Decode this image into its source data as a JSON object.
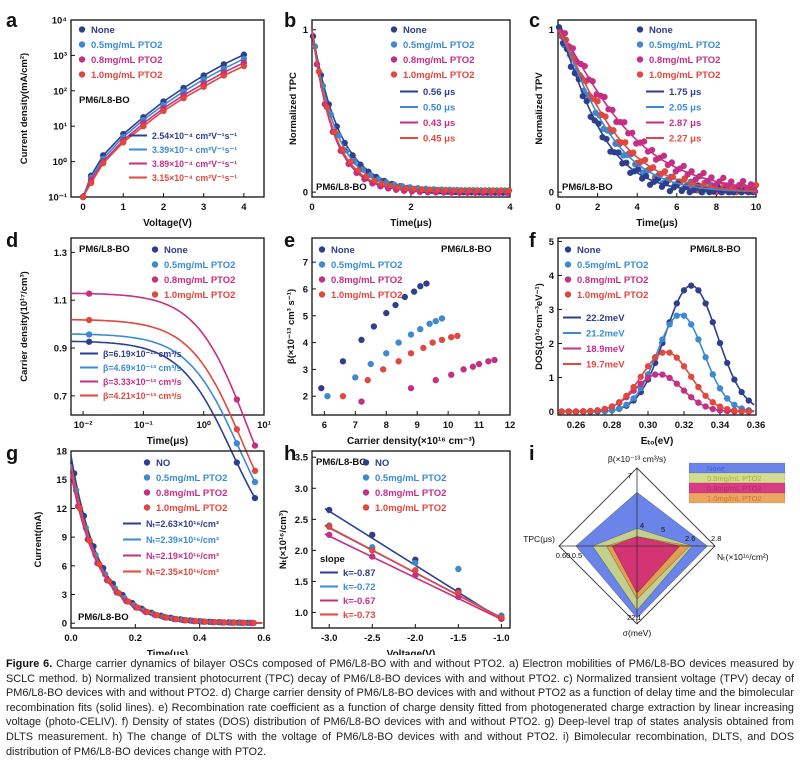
{
  "colors": {
    "none": "#2e3f8f",
    "c05": "#3b8bd4",
    "c08": "#c92e86",
    "c10": "#e5463e",
    "axis": "#111111"
  },
  "caption": {
    "label": "Figure 6.",
    "text": "Charge carrier dynamics of bilayer OSCs composed of PM6/L8-BO with and without PTO2. a) Electron mobilities of PM6/L8-BO devices measured by SCLC method. b) Normalized transient photocurrent (TPC) decay of PM6/L8-BO devices with and without PTO2. c) Normalized transient voltage (TPV) decay of PM6/L8-BO devices with and without PTO2. d) Charge carrier density of PM6/L8-BO devices with and without PTO2 as a function of delay time and the bimolecular recombination fits (solid lines). e) Recombination rate coefficient as a function of charge density fitted from photogenerated charge extraction by linear increasing voltage (photo-CELIV). f) Density of states (DOS) distribution of PM6/L8-BO devices with and without PTO2. g) Deep-level trap of states analysis obtained from DLTS measurement. h) The change of DLTS with the voltage of PM6/L8-BO devices with and without PTO2. i) Bimolecular recombination, DLTS, and DOS distribution of PM6/L8-BO devices change with PTO2."
  },
  "chart_data": [
    {
      "id": "a",
      "type": "scatter",
      "scale": "log-y",
      "xlabel": "Voltage(V)",
      "ylabel": "Current density(mA/cm²)",
      "xlim": [
        -0.3,
        4.5
      ],
      "ylim_exp": [
        -1,
        4
      ],
      "xticks": [
        "0",
        "1",
        "2",
        "3",
        "4"
      ],
      "yticks": [
        "10⁻¹",
        "10⁰",
        "10¹",
        "10²",
        "10³",
        "10⁴"
      ],
      "annotation": "PM6/L8-BO",
      "legend": [
        "None",
        "0.5mg/mL PTO2",
        "0.8mg/mL PTO2",
        "1.0mg/mL PTO2"
      ],
      "fit_labels": [
        "2.54×10⁻⁴ cm²V⁻¹s⁻¹",
        "3.39×10⁻⁴ cm²V⁻¹s⁻¹",
        "3.89×10⁻⁴ cm²V⁻¹s⁻¹",
        "3.15×10⁻⁴ cm²V⁻¹s⁻¹"
      ],
      "series": [
        {
          "name": "None",
          "x": [
            0.0,
            0.2,
            0.5,
            1.0,
            1.5,
            2.0,
            2.5,
            3.0,
            3.5,
            4.0
          ],
          "y": [
            0.1,
            0.4,
            1.5,
            6,
            18,
            50,
            120,
            270,
            560,
            1050
          ]
        },
        {
          "name": "0.5mg/mL PTO2",
          "x": [
            0.0,
            0.2,
            0.5,
            1.0,
            1.5,
            2.0,
            2.5,
            3.0,
            3.5,
            4.0
          ],
          "y": [
            0.1,
            0.35,
            1.2,
            5,
            15,
            40,
            95,
            210,
            420,
            800
          ]
        },
        {
          "name": "0.8mg/mL PTO2",
          "x": [
            0.0,
            0.2,
            0.5,
            1.0,
            1.5,
            2.0,
            2.5,
            3.0,
            3.5,
            4.0
          ],
          "y": [
            0.1,
            0.3,
            1.0,
            4,
            12,
            32,
            75,
            160,
            330,
            620
          ]
        },
        {
          "name": "1.0mg/mL PTO2",
          "x": [
            0.0,
            0.2,
            0.5,
            1.0,
            1.5,
            2.0,
            2.5,
            3.0,
            3.5,
            4.0
          ],
          "y": [
            0.1,
            0.25,
            0.9,
            3.5,
            10,
            27,
            62,
            130,
            270,
            500
          ]
        }
      ]
    },
    {
      "id": "b",
      "type": "scatter",
      "xlabel": "Time(μs)",
      "ylabel": "Normalized TPC",
      "xlim": [
        0,
        4
      ],
      "ylim": [
        -0.03,
        1.06
      ],
      "xticks": [
        "0",
        "2",
        "4"
      ],
      "yticks": [
        "0",
        "1"
      ],
      "annotation": "PM6/L8-BO",
      "legend": [
        "None",
        "0.5mg/mL PTO2",
        "0.8mg/mL PTO2",
        "1.0mg/mL PTO2"
      ],
      "fit_labels": [
        "0.56 μs",
        "0.50 μs",
        "0.43 μs",
        "0.45 μs"
      ],
      "tau": [
        0.56,
        0.5,
        0.43,
        0.45
      ]
    },
    {
      "id": "c",
      "type": "scatter",
      "xlabel": "Time(μs)",
      "ylabel": "Normalized TPV",
      "xlim": [
        0,
        10
      ],
      "ylim": [
        -0.03,
        1.06
      ],
      "xticks": [
        "0",
        "2",
        "4",
        "6",
        "8",
        "10"
      ],
      "yticks": [
        "0",
        "1"
      ],
      "annotation": "PM6/L8-BO",
      "legend": [
        "None",
        "0.5mg/mL PTO2",
        "0.8mg/mL PTO2",
        "1.0mg/mL PTO2"
      ],
      "fit_labels": [
        "1.75 μs",
        "2.05 μs",
        "2.87 μs",
        "2.27 μs"
      ],
      "tau": [
        1.75,
        2.05,
        2.87,
        2.27
      ]
    },
    {
      "id": "d",
      "type": "scatter",
      "scale": "log-x",
      "xlabel": "Time(μs)",
      "ylabel": "Carrier density(10¹⁷/cm³)",
      "xlim_exp": [
        -2.2,
        1.0
      ],
      "ylim": [
        0.62,
        1.36
      ],
      "xticks": [
        "10⁻²",
        "10⁻¹",
        "10⁰",
        "10¹"
      ],
      "yticks": [
        "0.7",
        "0.9",
        "1.1",
        "1.3"
      ],
      "annotation": "PM6/L8-BO",
      "legend": [
        "None",
        "0.5mg/mL PTO2",
        "0.8mg/mL PTO2",
        "1.0mg/mL PTO2"
      ],
      "fit_labels": [
        "β=6.19×10⁻¹³ cm³/s",
        "β=4.69×10⁻¹³ cm³/s",
        "β=3.33×10⁻¹³ cm³/s",
        "β=4.21×10⁻¹³ cm³/s"
      ],
      "plateau": [
        0.93,
        0.96,
        1.13,
        1.02
      ]
    },
    {
      "id": "e",
      "type": "scatter",
      "xlabel": "Carrier density(×10¹⁶ cm⁻³)",
      "ylabel": "β(×10⁻¹³ cm³ s⁻¹)",
      "xlim": [
        5.6,
        12
      ],
      "ylim": [
        1.3,
        7.9
      ],
      "xticks": [
        "6",
        "7",
        "8",
        "9",
        "10",
        "11",
        "12"
      ],
      "yticks": [
        "2",
        "3",
        "4",
        "5",
        "6",
        "7"
      ],
      "annotation": "PM6/L8-BO",
      "legend": [
        "None",
        "0.5mg/mL PTO2",
        "0.8mg/mL PTO2",
        "1.0mg/mL PTO2"
      ],
      "series": [
        {
          "name": "None",
          "x": [
            5.9,
            6.6,
            7.2,
            7.6,
            8.0,
            8.3,
            8.6,
            8.9,
            9.1,
            9.3
          ],
          "y": [
            2.3,
            3.3,
            4.1,
            4.6,
            5.1,
            5.4,
            5.7,
            5.9,
            6.1,
            6.2
          ]
        },
        {
          "name": "0.5mg/mL PTO2",
          "x": [
            6.1,
            7.0,
            7.5,
            8.0,
            8.4,
            8.8,
            9.1,
            9.4,
            9.6,
            9.8
          ],
          "y": [
            2.0,
            2.7,
            3.2,
            3.6,
            4.0,
            4.3,
            4.5,
            4.7,
            4.8,
            4.9
          ]
        },
        {
          "name": "0.8mg/mL PTO2",
          "x": [
            7.2,
            8.8,
            9.6,
            10.1,
            10.5,
            10.8,
            11.0,
            11.3,
            11.5
          ],
          "y": [
            1.8,
            2.3,
            2.6,
            2.8,
            3.0,
            3.1,
            3.2,
            3.3,
            3.35
          ]
        },
        {
          "name": "1.0mg/mL PTO2",
          "x": [
            6.6,
            7.4,
            7.9,
            8.4,
            8.8,
            9.2,
            9.5,
            9.8,
            10.1,
            10.3
          ],
          "y": [
            2.0,
            2.6,
            3.0,
            3.3,
            3.6,
            3.8,
            4.0,
            4.1,
            4.2,
            4.25
          ]
        }
      ]
    },
    {
      "id": "f",
      "type": "scatter",
      "xlabel": "Eₜₒ(eV)",
      "ylabel": "DOS(10¹⁶cm⁻³eV⁻¹)",
      "xlim": [
        0.25,
        0.36
      ],
      "ylim": [
        -0.1,
        5.1
      ],
      "xticks": [
        "0.26",
        "0.28",
        "0.30",
        "0.32",
        "0.34",
        "0.36"
      ],
      "yticks": [
        "0",
        "1",
        "2",
        "3",
        "4",
        "5"
      ],
      "annotation": "PM6/L8-BO",
      "legend": [
        "None",
        "0.5mg/mL PTO2",
        "0.8mg/mL PTO2",
        "1.0mg/mL PTO2"
      ],
      "fit_labels": [
        "22.2meV",
        "21.2meV",
        "18.9meV",
        "19.7meV"
      ],
      "peaks": [
        {
          "x0": 0.324,
          "amp": 3.7,
          "sigma": 0.0145
        },
        {
          "x0": 0.318,
          "amp": 2.85,
          "sigma": 0.013
        },
        {
          "x0": 0.306,
          "amp": 1.1,
          "sigma": 0.013
        },
        {
          "x0": 0.31,
          "amp": 1.75,
          "sigma": 0.0135
        }
      ]
    },
    {
      "id": "g",
      "type": "scatter",
      "xlabel": "Time(μs)",
      "ylabel": "Current(mA)",
      "xlim": [
        0,
        0.6
      ],
      "ylim": [
        -0.5,
        18
      ],
      "xticks": [
        "0.0",
        "0.2",
        "0.4",
        "0.6"
      ],
      "yticks": [
        "0",
        "3",
        "6",
        "9",
        "12",
        "15",
        "18"
      ],
      "annotation": "PM6/L8-BO",
      "legend": [
        "NO",
        "0.5mg/mL PTO2",
        "0.8mg/mL PTO2",
        "1.0mg/mL PTO2"
      ],
      "fit_labels": [
        "Nₜ=2.63×10¹⁶/cm³",
        "Nₜ=2.39×10¹⁶/cm³",
        "Nₜ=2.19×10¹⁶/cm³",
        "Nₜ=2.35×10¹⁶/cm³"
      ],
      "amp": [
        17.5,
        16.6,
        15.6,
        16.4
      ],
      "tau": 0.09
    },
    {
      "id": "h",
      "type": "scatter",
      "xlabel": "Voltage(V)",
      "ylabel": "Nₜ(×10¹⁶/cm³)",
      "xlim": [
        -3.2,
        -0.9
      ],
      "ylim": [
        0.75,
        3.6
      ],
      "xticks": [
        "-3.0",
        "-2.5",
        "-2.0",
        "-1.5",
        "-1.0"
      ],
      "yticks": [
        "1.0",
        "1.5",
        "2.0",
        "2.5",
        "3.0",
        "3.5"
      ],
      "annotation": "PM6/L8-BO",
      "legend": [
        "NO",
        "0.5mg/mL PTO2",
        "0.8mg/mL PTO2",
        "1.0mg/mL PTO2"
      ],
      "slope_title": "slope",
      "fit_labels": [
        "k=-0.87",
        "k=-0.72",
        "k=-0.67",
        "k=-0.73"
      ],
      "series": [
        {
          "name": "NO",
          "x": [
            -3.0,
            -2.5,
            -2.0,
            -1.5,
            -1.0
          ],
          "y": [
            2.65,
            2.25,
            1.85,
            1.35,
            0.9
          ]
        },
        {
          "name": "0.5mg/mL PTO2",
          "x": [
            -3.0,
            -2.5,
            -2.0,
            -1.5,
            -1.0
          ],
          "y": [
            2.4,
            2.05,
            1.8,
            1.7,
            0.95
          ]
        },
        {
          "name": "0.8mg/mL PTO2",
          "x": [
            -3.0,
            -2.5,
            -2.0,
            -1.5,
            -1.0
          ],
          "y": [
            2.25,
            1.9,
            1.6,
            1.25,
            0.9
          ]
        },
        {
          "name": "1.0mg/mL PTO2",
          "x": [
            -3.0,
            -2.5,
            -2.0,
            -1.5,
            -1.0
          ],
          "y": [
            2.38,
            2.0,
            1.68,
            1.32,
            0.92
          ]
        }
      ],
      "fits": [
        {
          "k": -0.87,
          "b": 0.02
        },
        {
          "k": -0.72,
          "b": 0.2
        },
        {
          "k": -0.67,
          "b": 0.22
        },
        {
          "k": -0.73,
          "b": 0.18
        }
      ]
    },
    {
      "id": "i",
      "type": "radar",
      "axes": [
        "β(×10⁻¹³ cm³/s)",
        "Nₜ(×10¹⁶/cm²)",
        "σ(meV)",
        "TPC(μs)"
      ],
      "tick_labels": [
        "7",
        "4",
        "2.8",
        "2.6",
        "22.1",
        "0.60",
        "0.5",
        "5"
      ],
      "legend": [
        "None",
        "0.5mg/mL PTO2",
        "0.8mg/mL PTO2",
        "1.0mg/mL PTO2"
      ],
      "series": [
        {
          "name": "None",
          "values": [
            6.19,
            2.63,
            22.2,
            0.56
          ]
        },
        {
          "name": "0.5mg/mL PTO2",
          "values": [
            4.69,
            2.39,
            21.2,
            0.5
          ]
        },
        {
          "name": "0.8mg/mL PTO2",
          "values": [
            3.33,
            2.19,
            18.9,
            0.43
          ]
        },
        {
          "name": "1.0mg/mL PTO2",
          "values": [
            4.21,
            2.35,
            19.7,
            0.45
          ]
        }
      ]
    }
  ]
}
